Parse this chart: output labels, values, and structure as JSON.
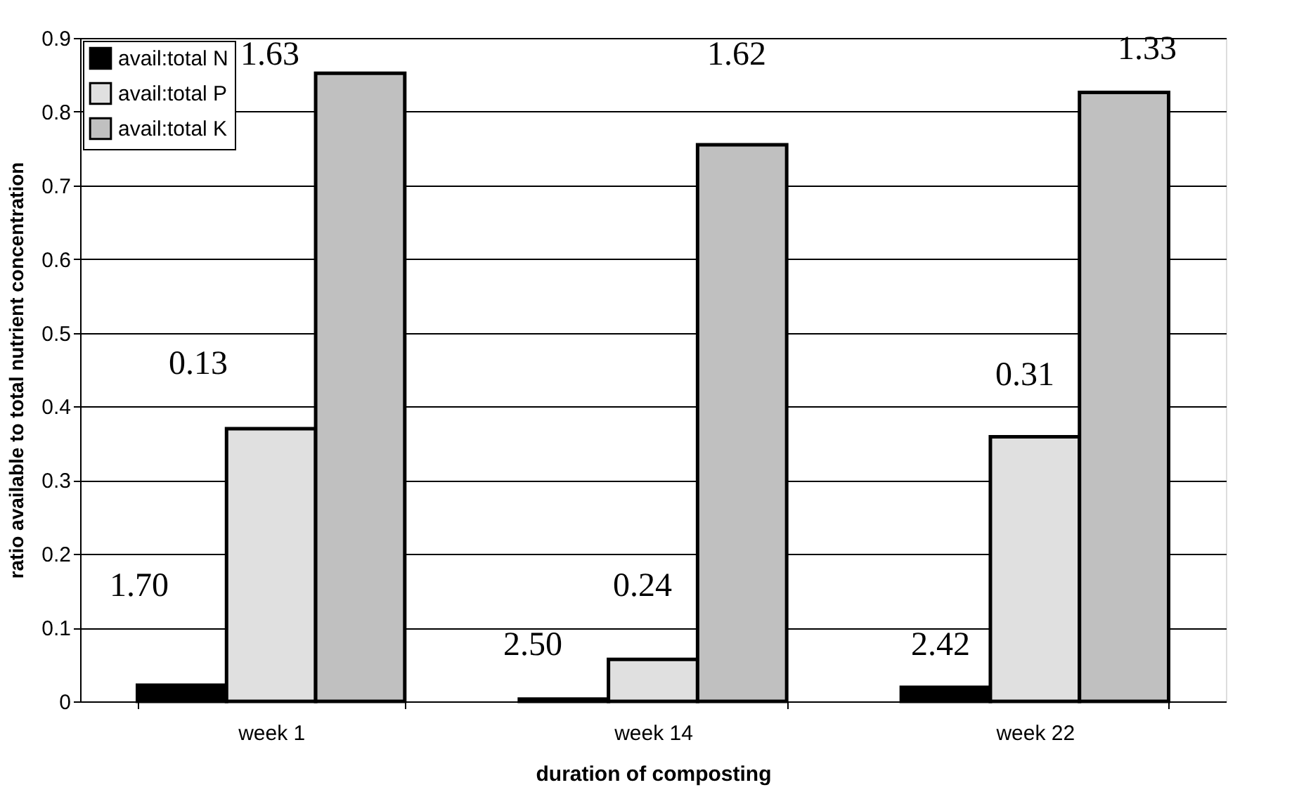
{
  "chart_data": {
    "type": "bar",
    "xlabel": "duration of composting",
    "ylabel": "ratio available to total nutrient concentration",
    "categories": [
      "week 1",
      "week 14",
      "week 22"
    ],
    "series": [
      {
        "name": "avail:total N",
        "color": "#000000",
        "values": [
          0.022,
          0.003,
          0.019
        ]
      },
      {
        "name": "avail:total P",
        "color": "#e0e0e0",
        "values": [
          0.37,
          0.057,
          0.359
        ]
      },
      {
        "name": "avail:total K",
        "color": "#c0c0c0",
        "values": [
          0.852,
          0.755,
          0.826
        ]
      }
    ],
    "ylim": [
      0,
      0.9
    ],
    "yticks": [
      0,
      0.1,
      0.2,
      0.3,
      0.4,
      0.5,
      0.6,
      0.7,
      0.8,
      0.9
    ],
    "grid": "y",
    "legend": "top left",
    "annotations": [
      "1.70",
      "0.13",
      "1.63",
      "2.50",
      "0.24",
      "1.62",
      "2.42",
      "0.31",
      "1.33"
    ]
  }
}
